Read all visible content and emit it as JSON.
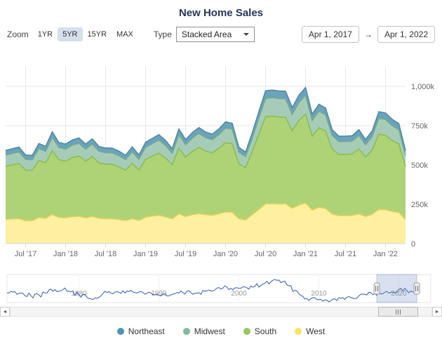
{
  "title": "New Home Sales",
  "toolbar": {
    "zoom_label": "Zoom",
    "zoom_buttons": [
      {
        "label": "1YR",
        "active": false
      },
      {
        "label": "5YR",
        "active": true
      },
      {
        "label": "15YR",
        "active": false
      },
      {
        "label": "MAX",
        "active": false
      }
    ],
    "type_label": "Type",
    "type_value": "Stacked Area",
    "start_date": "Apr 1, 2017",
    "range_separator": "→",
    "end_date": "Apr 1, 2022"
  },
  "icons": {
    "scroll_left": "◄",
    "scroll_right": "►"
  },
  "chart_data": {
    "type": "area",
    "stacked": true,
    "title": "New Home Sales",
    "x": {
      "start": "Apr 2017",
      "end": "Apr 2022",
      "interval": "monthly"
    },
    "x_tick_labels": [
      "Jul '17",
      "Jan '18",
      "Jul '18",
      "Jan '19",
      "Jul '19",
      "Jan '20",
      "Jul '20",
      "Jan '21",
      "Jul '21",
      "Jan '22"
    ],
    "x_tick_indices": [
      3,
      9,
      15,
      21,
      27,
      33,
      39,
      45,
      51,
      57
    ],
    "y_tick_labels": [
      "0",
      "250k",
      "500k",
      "750k",
      "1,000k"
    ],
    "y_tick_values": [
      0,
      250,
      500,
      750,
      1000
    ],
    "ylim": [
      0,
      1120
    ],
    "y_axis_side": "right",
    "grid": true,
    "legend_position": "bottom",
    "stack_order_bottom_to_top": [
      "West",
      "South",
      "Midwest",
      "Northeast"
    ],
    "series": [
      {
        "name": "Northeast",
        "fill": "#6ba3bb",
        "line_color": "#4a88a5",
        "values": [
          30,
          30,
          31,
          28,
          28,
          32,
          31,
          36,
          32,
          32,
          33,
          34,
          32,
          33,
          31,
          30,
          30,
          29,
          28,
          31,
          28,
          32,
          33,
          35,
          33,
          30,
          36,
          33,
          35,
          37,
          36,
          35,
          36,
          39,
          38,
          31,
          29,
          35,
          42,
          49,
          49,
          49,
          48,
          43,
          47,
          50,
          41,
          44,
          43,
          36,
          34,
          34,
          34,
          36,
          33,
          36,
          42,
          42,
          40,
          38,
          30
        ]
      },
      {
        "name": "Midwest",
        "fill": "#a6ccb8",
        "line_color": "#74a88e",
        "values": [
          71,
          72,
          74,
          68,
          67,
          76,
          74,
          85,
          77,
          76,
          79,
          81,
          76,
          80,
          74,
          73,
          73,
          71,
          67,
          74,
          68,
          77,
          80,
          83,
          79,
          72,
          87,
          79,
          85,
          89,
          85,
          84,
          87,
          93,
          92,
          73,
          70,
          84,
          101,
          117,
          117,
          117,
          116,
          104,
          113,
          119,
          99,
          106,
          104,
          87,
          82,
          82,
          82,
          87,
          79,
          86,
          101,
          100,
          95,
          92,
          71
        ]
      },
      {
        "name": "South",
        "fill": "#aed377",
        "line_color": "#8abc4c",
        "values": [
          338,
          344,
          350,
          321,
          320,
          363,
          352,
          405,
          367,
          361,
          376,
          383,
          361,
          380,
          352,
          347,
          346,
          335,
          320,
          351,
          321,
          367,
          381,
          395,
          374,
          344,
          416,
          377,
          402,
          421,
          405,
          397,
          416,
          441,
          436,
          349,
          332,
          401,
          479,
          554,
          557,
          553,
          552,
          493,
          538,
          566,
          469,
          505,
          492,
          413,
          389,
          389,
          391,
          413,
          377,
          409,
          478,
          474,
          450,
          435,
          337
        ]
      },
      {
        "name": "West",
        "fill": "#fdf0a0",
        "line_color": "#e5cf5b",
        "values": [
          154,
          157,
          159,
          146,
          146,
          166,
          161,
          185,
          167,
          164,
          171,
          174,
          164,
          173,
          161,
          158,
          158,
          153,
          147,
          159,
          147,
          168,
          175,
          180,
          170,
          158,
          190,
          172,
          184,
          191,
          184,
          180,
          190,
          201,
          199,
          159,
          151,
          184,
          218,
          252,
          254,
          252,
          253,
          225,
          245,
          258,
          214,
          231,
          224,
          188,
          178,
          178,
          179,
          189,
          173,
          186,
          218,
          215,
          205,
          198,
          153
        ]
      }
    ],
    "navigator": {
      "line_color": "#335cad",
      "years_start": 1971,
      "interval": "annual",
      "x_domain": [
        1971,
        2024
      ],
      "values": [
        656,
        718,
        634,
        519,
        549,
        646,
        819,
        817,
        709,
        545,
        436,
        412,
        623,
        639,
        688,
        750,
        671,
        676,
        650,
        534,
        509,
        610,
        666,
        670,
        667,
        757,
        804,
        886,
        880,
        877,
        908,
        973,
        1086,
        1203,
        1283,
        1051,
        776,
        485,
        375,
        323,
        306,
        368,
        429,
        437,
        501,
        561,
        613,
        617,
        683,
        822,
        771,
        640
      ],
      "x_tick_labels": [
        "1980",
        "1990",
        "2000",
        "2010",
        "2020"
      ],
      "selection": {
        "start_year": 2017.25,
        "end_year": 2022.25,
        "start_label": "Apr 1, 2017",
        "end_label": "Apr 1, 2022"
      }
    }
  },
  "legend": {
    "items": [
      {
        "label": "Northeast",
        "color": "#4a96b4"
      },
      {
        "label": "Midwest",
        "color": "#82b9a2"
      },
      {
        "label": "South",
        "color": "#9cc75b"
      },
      {
        "label": "West",
        "color": "#f9e45f"
      }
    ]
  }
}
